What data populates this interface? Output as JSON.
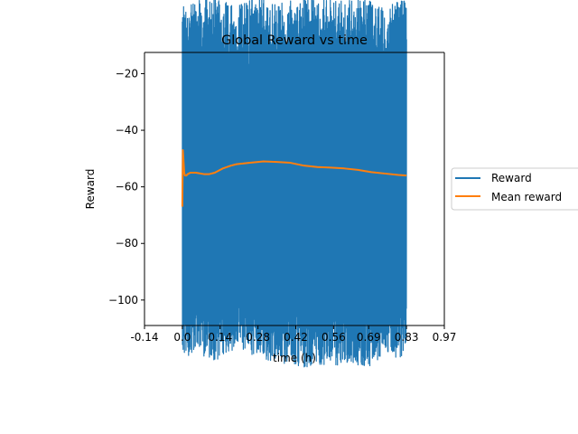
{
  "chart_data": {
    "type": "line",
    "title": "Global Reward vs time",
    "xlabel": "time (h)",
    "ylabel": "Reward",
    "xlim": [
      -0.14,
      0.97
    ],
    "ylim": [
      -109,
      -12.5
    ],
    "xticks": [
      -0.14,
      0.0,
      0.14,
      0.28,
      0.42,
      0.56,
      0.69,
      0.83,
      0.97
    ],
    "xtick_labels": [
      "-0.14",
      "0.0",
      "0.14",
      "0.28",
      "0.42",
      "0.56",
      "0.69",
      "0.83",
      "0.97"
    ],
    "yticks": [
      -20,
      -40,
      -60,
      -80,
      -100
    ],
    "ytick_labels": [
      "−20",
      "−40",
      "−60",
      "−80",
      "−100"
    ],
    "grid": false,
    "legend_position": "right",
    "series": [
      {
        "name": "Reward",
        "color": "#1f77b4",
        "style": "noisy-band",
        "x_start": 0.0,
        "x_end": 0.83,
        "envelope_x": [
          0.0,
          0.05,
          0.1,
          0.15,
          0.2,
          0.25,
          0.3,
          0.35,
          0.4,
          0.45,
          0.5,
          0.55,
          0.6,
          0.65,
          0.7,
          0.75,
          0.8,
          0.83
        ],
        "envelope_high": [
          -21,
          -20,
          -19,
          -20,
          -22,
          -19,
          -19,
          -21,
          -20,
          -19,
          -19,
          -20,
          -20,
          -19,
          -20,
          -23,
          -20,
          -19
        ],
        "envelope_low": [
          -101,
          -98,
          -102,
          -101,
          -97,
          -99,
          -101,
          -103,
          -102,
          -104,
          -103,
          -104,
          -102,
          -103,
          -104,
          -99,
          -102,
          -96
        ]
      },
      {
        "name": "Mean reward",
        "color": "#ff7f0e",
        "style": "line",
        "x": [
          0.0,
          0.002,
          0.004,
          0.007,
          0.01,
          0.015,
          0.02,
          0.03,
          0.05,
          0.08,
          0.1,
          0.12,
          0.15,
          0.18,
          0.2,
          0.25,
          0.28,
          0.3,
          0.35,
          0.4,
          0.45,
          0.5,
          0.55,
          0.6,
          0.65,
          0.7,
          0.75,
          0.8,
          0.83
        ],
        "y": [
          -67,
          -47,
          -50,
          -55,
          -56,
          -56,
          -55.5,
          -55,
          -55,
          -55.5,
          -55.5,
          -55,
          -53.5,
          -52.5,
          -52,
          -51.5,
          -51.2,
          -51,
          -51.2,
          -51.5,
          -52.5,
          -53,
          -53.2,
          -53.5,
          -54,
          -54.8,
          -55.3,
          -55.8,
          -56
        ]
      }
    ]
  }
}
